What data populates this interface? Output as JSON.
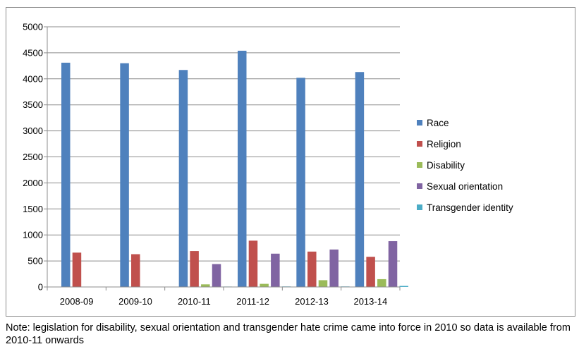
{
  "chart_data": {
    "type": "bar",
    "categories": [
      "2008-09",
      "2009-10",
      "2010-11",
      "2011-12",
      "2012-13",
      "2013-14"
    ],
    "series": [
      {
        "name": "Race",
        "color": "#4F81BD",
        "values": [
          4310,
          4300,
          4170,
          4540,
          4020,
          4130
        ]
      },
      {
        "name": "Religion",
        "color": "#C0504D",
        "values": [
          660,
          630,
          690,
          890,
          680,
          580
        ]
      },
      {
        "name": "Disability",
        "color": "#9BBB59",
        "values": [
          null,
          null,
          50,
          60,
          130,
          150
        ]
      },
      {
        "name": "Sexual orientation",
        "color": "#8064A2",
        "values": [
          null,
          null,
          440,
          640,
          720,
          880
        ]
      },
      {
        "name": "Transgender identity",
        "color": "#4BACC6",
        "values": [
          null,
          null,
          8,
          10,
          10,
          20
        ]
      }
    ],
    "ylim": [
      0,
      5000
    ],
    "yticks": [
      "0",
      "500",
      "1000",
      "1500",
      "2000",
      "2500",
      "3000",
      "3500",
      "4000",
      "4500",
      "5000"
    ],
    "grid": true,
    "legend_position": "right",
    "xlabel": "",
    "ylabel": ""
  },
  "note": "Note: legislation for disability, sexual orientation and transgender hate crime came into force in 2010 so data is available from 2010-11 onwards"
}
